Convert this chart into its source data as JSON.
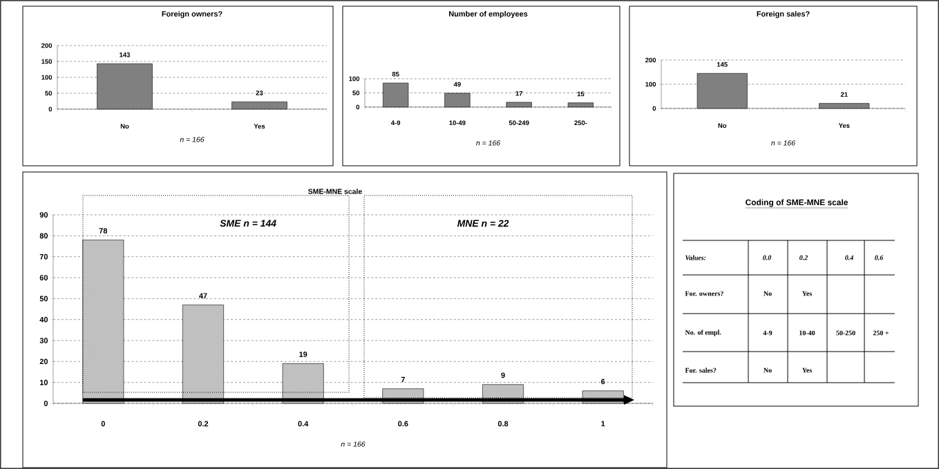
{
  "chart_data": [
    {
      "type": "bar",
      "title": "Foreign owners?",
      "xlabel": "n = 166",
      "categories": [
        "No",
        "Yes"
      ],
      "values": [
        143,
        23
      ],
      "color": "#808080",
      "ylim": [
        0,
        200
      ],
      "yticks": [
        0,
        50,
        100,
        150,
        200
      ],
      "grid": "y",
      "data_labels": true
    },
    {
      "type": "bar",
      "title": "Number of employees",
      "xlabel": "n = 166",
      "categories": [
        "4-9",
        "10-49",
        "50-249",
        "250-"
      ],
      "values": [
        85,
        49,
        17,
        15
      ],
      "color": "#808080",
      "ylim": [
        0,
        100
      ],
      "yticks": [
        0,
        50,
        100
      ],
      "grid": "y",
      "data_labels": true
    },
    {
      "type": "bar",
      "title": "Foreign sales?",
      "xlabel": "n = 166",
      "categories": [
        "No",
        "Yes"
      ],
      "values": [
        145,
        21
      ],
      "color": "#808080",
      "ylim": [
        0,
        200
      ],
      "yticks": [
        0,
        100,
        200
      ],
      "grid": "y",
      "data_labels": true
    },
    {
      "type": "bar",
      "title": "SME-MNE scale",
      "xlabel": "n = 166",
      "categories": [
        "0",
        "0.2",
        "0.4",
        "0.6",
        "0.8",
        "1"
      ],
      "values": [
        78,
        47,
        19,
        7,
        9,
        6
      ],
      "color": "#c0c0c0",
      "ylim": [
        0,
        90
      ],
      "yticks": [
        0,
        10,
        20,
        30,
        40,
        50,
        60,
        70,
        80,
        90
      ],
      "grid": "y",
      "data_labels": true,
      "annotations": [
        "SME    n = 144",
        "MNE    n = 22"
      ]
    },
    {
      "type": "other",
      "title": "Coding of SME-MNE scale",
      "annotations": [
        "Values:"
      ],
      "categories": [
        "0.0",
        "0.2",
        "0.4",
        "0.6"
      ],
      "y_categories": [
        "For. owners?",
        "No. of empl.",
        "For. sales?"
      ],
      "cell_labels": [
        [
          "No",
          "Yes",
          null,
          null
        ],
        [
          "4-9",
          "10-40",
          "50-250",
          "250 +"
        ],
        [
          "No",
          "Yes",
          null,
          null
        ]
      ]
    }
  ]
}
